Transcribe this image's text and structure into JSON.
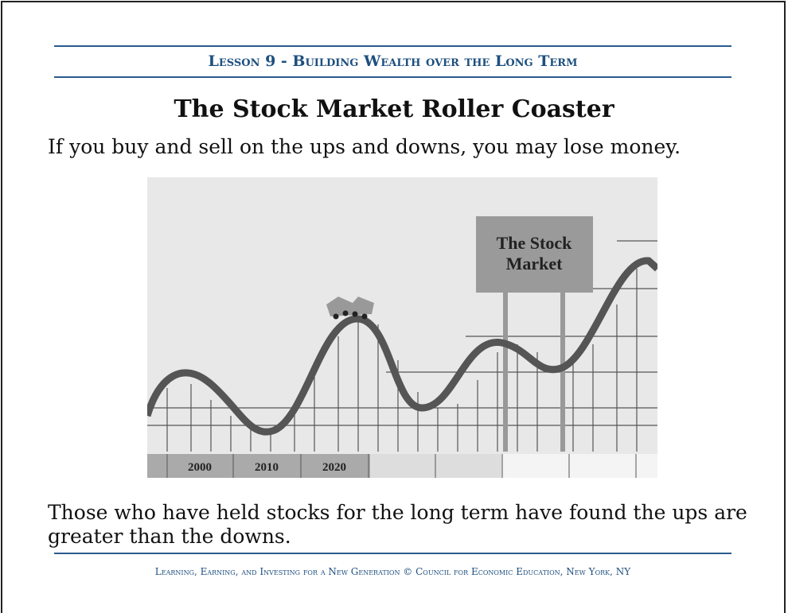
{
  "header": {
    "lesson": "Lesson 9 - Building Wealth over the Long Term"
  },
  "title": "The Stock Market Roller Coaster",
  "intro": "If you buy and sell on the ups and downs, you may lose money.",
  "illustration": {
    "sign": [
      "The Stock",
      "Market"
    ],
    "years": [
      "2000",
      "2010",
      "2020"
    ]
  },
  "conclusion": "Those who have held stocks for the long term have found the ups are greater than the downs.",
  "footer": "Learning, Earning, and Investing for a New Generation © Council for Economic Education, New York, NY"
}
